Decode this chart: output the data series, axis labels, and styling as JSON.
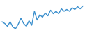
{
  "line_color": "#3a8fcd",
  "background_color": "#ffffff",
  "linewidth": 1.0,
  "y_values": [
    3.5,
    3.0,
    2.2,
    3.5,
    2.0,
    1.5,
    2.8,
    4.5,
    3.0,
    2.2,
    3.8,
    2.5,
    6.5,
    4.0,
    5.5,
    4.8,
    6.0,
    5.2,
    6.8,
    5.8,
    6.5,
    5.8,
    7.2,
    6.5,
    7.0,
    6.5,
    7.5,
    7.0,
    7.8,
    7.2,
    8.0
  ]
}
